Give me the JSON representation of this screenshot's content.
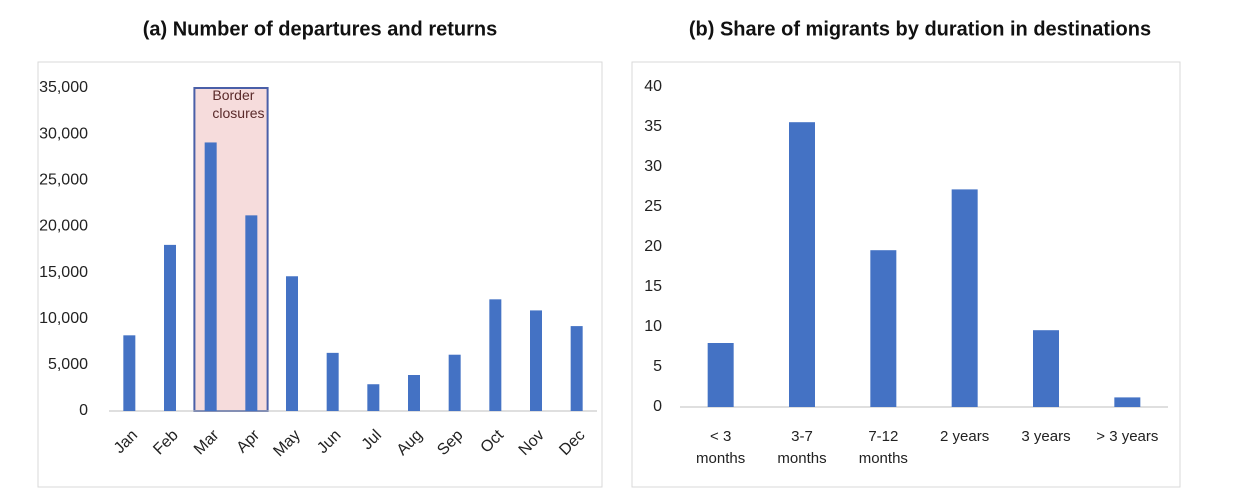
{
  "chart_data": [
    {
      "type": "bar",
      "title": "(a)  Number of departures and returns",
      "categories": [
        "Jan",
        "Feb",
        "Mar",
        "Apr",
        "May",
        "Jun",
        "Jul",
        "Aug",
        "Sep",
        "Oct",
        "Nov",
        "Dec"
      ],
      "values": [
        8200,
        18000,
        29100,
        21200,
        14600,
        6300,
        2900,
        3900,
        6100,
        12100,
        10900,
        9200
      ],
      "color": "#4472c4",
      "ylim": [
        0,
        35000
      ],
      "yticks": [
        0,
        {
          "value": 5000,
          "label": "5,000"
        },
        {
          "value": 10000,
          "label": "10,000"
        },
        {
          "value": 15000,
          "label": "15,000"
        },
        {
          "value": 20000,
          "label": "20,000"
        },
        {
          "value": 25000,
          "label": "25,000"
        },
        {
          "value": 30000,
          "label": "30,000"
        },
        {
          "value": 35000,
          "label": "35,000"
        }
      ],
      "grid": false,
      "highlight": {
        "label": "Border closures",
        "categories": [
          "Mar",
          "Apr"
        ]
      }
    },
    {
      "type": "bar",
      "title": "(b) Share of migrants by duration in destinations",
      "categories": [
        "< 3 months",
        "3-7 months",
        "7-12 months",
        "2 years",
        "3 years",
        "> 3 years"
      ],
      "values": [
        8,
        35.6,
        19.6,
        27.2,
        9.6,
        1.2
      ],
      "color": "#4472c4",
      "ylim": [
        0,
        40
      ],
      "yticks": [
        0,
        5,
        10,
        15,
        20,
        25,
        30,
        35,
        40
      ],
      "grid": false
    }
  ]
}
